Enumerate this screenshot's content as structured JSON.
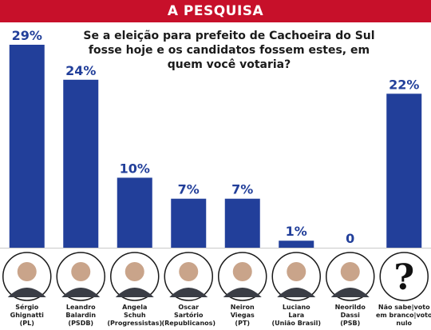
{
  "header": {
    "title": "A PESQUISA"
  },
  "question": "Se a eleição para prefeito de Cachoeira do Sul fosse hoje e os candidatos fossem estes, em quem você votaria?",
  "colors": {
    "banner": "#c7102a",
    "bar": "#223f9a"
  },
  "chart_data": {
    "type": "bar",
    "title": "Se a eleição para prefeito de Cachoeira do Sul fosse hoje e os candidatos fossem estes, em quem você votaria?",
    "categories": [
      "Sérgio Ghignatti (PL)",
      "Leandro Balardin (PSDB)",
      "Angela Schuh (Progressistas)",
      "Oscar Sartório (Republicanos)",
      "Neiron Viegas (PT)",
      "Luciano Lara (União Brasil)",
      "Neorildo Dassi (PSB)",
      "Não sabe|voto em branco|voto nulo"
    ],
    "values": [
      29,
      24,
      10,
      7,
      7,
      1,
      0,
      22
    ],
    "value_labels": [
      "29%",
      "24%",
      "10%",
      "7%",
      "7%",
      "1%",
      "0",
      "22%"
    ],
    "ylim": [
      0,
      29
    ],
    "grid": false
  },
  "candidates": [
    {
      "lines": [
        "Sérgio",
        "Ghignatti",
        "(PL)"
      ],
      "icon": "person-photo-icon"
    },
    {
      "lines": [
        "Leandro",
        "Balardin",
        "(PSDB)"
      ],
      "icon": "person-photo-icon"
    },
    {
      "lines": [
        "Angela",
        "Schuh",
        "(Progressistas)"
      ],
      "icon": "person-photo-icon"
    },
    {
      "lines": [
        "Oscar",
        "Sartório",
        "(Republicanos)"
      ],
      "icon": "person-photo-icon"
    },
    {
      "lines": [
        "Neiron",
        "Viegas",
        "(PT)"
      ],
      "icon": "person-photo-icon"
    },
    {
      "lines": [
        "Luciano",
        "Lara",
        "(União Brasil)"
      ],
      "icon": "person-photo-icon"
    },
    {
      "lines": [
        "Neorildo",
        "Dassi",
        "(PSB)"
      ],
      "icon": "person-photo-icon"
    },
    {
      "lines": [
        "Não sabe|voto",
        "em branco|voto",
        "nulo"
      ],
      "icon": "question-mark-icon"
    }
  ]
}
